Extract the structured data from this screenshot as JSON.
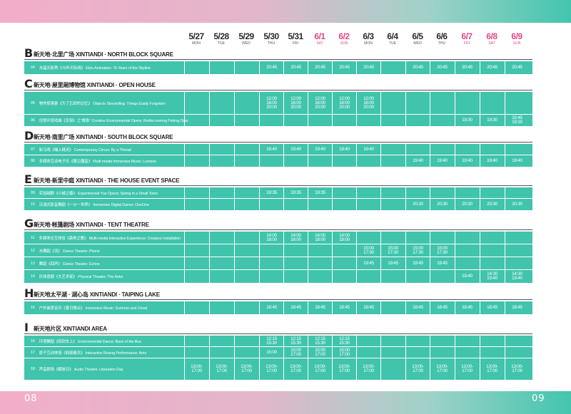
{
  "page": {
    "left_number": "08",
    "right_number": "09"
  },
  "dates": [
    {
      "date": "5/27",
      "day": "MON",
      "weekend": false
    },
    {
      "date": "5/28",
      "day": "TUE",
      "weekend": false
    },
    {
      "date": "5/29",
      "day": "WED",
      "weekend": false
    },
    {
      "date": "5/30",
      "day": "THU",
      "weekend": false
    },
    {
      "date": "5/31",
      "day": "FRI",
      "weekend": false
    },
    {
      "date": "6/1",
      "day": "SAT",
      "weekend": true
    },
    {
      "date": "6/2",
      "day": "SUN",
      "weekend": true
    },
    {
      "date": "6/3",
      "day": "MON",
      "weekend": false
    },
    {
      "date": "6/4",
      "day": "TUE",
      "weekend": false
    },
    {
      "date": "6/5",
      "day": "WED",
      "weekend": false
    },
    {
      "date": "6/6",
      "day": "THU",
      "weekend": false
    },
    {
      "date": "6/7",
      "day": "FRI",
      "weekend": true
    },
    {
      "date": "6/8",
      "day": "SAT",
      "weekend": true
    },
    {
      "date": "6/9",
      "day": "SUN",
      "weekend": true
    }
  ],
  "venues": [
    {
      "letter": "B",
      "name": "新天地·北里广场  XINTIANDI · NORTH BLOCK SQUARE",
      "rows": [
        {
          "num": "04",
          "title": "水晶光影秀《70年天际线》  Ebru Animation: 70 Years of the Skyline",
          "times": [
            "",
            "",
            "",
            "20:45",
            "20:45",
            "20:45",
            "20:45",
            "20:45",
            "",
            "20:45",
            "20:45",
            "20:45",
            "20:45",
            "20:45"
          ]
        }
      ]
    },
    {
      "letter": "C",
      "name": "新天地·屋里厢博物馆  XINTIANDI · OPEN HOUSE",
      "rows": [
        {
          "num": "05",
          "title": "物件叙事剧《为了忘却的记忆》  Objects Storytelling: Things Easily Forgotten",
          "times": [
            "",
            "",
            "",
            "12:00\n16:00\n20:00",
            "12:00\n16:00\n20:00",
            "12:00\n16:00\n20:00",
            "12:00\n16:00\n20:00",
            "12:00\n16:00\n20:00",
            "",
            "",
            "",
            "",
            "",
            ""
          ]
        },
        {
          "num": "06",
          "title": "创意环境戏曲《京探》之“微系”  Creative Environmental Opera: Rediscovering Peking Opera",
          "times": [
            "",
            "",
            "",
            "",
            "",
            "",
            "",
            "",
            "",
            "",
            "",
            "19:30",
            "19:30",
            "15:45\n19:30"
          ]
        }
      ]
    },
    {
      "letter": "D",
      "name": "新天地·南里广场  XINTIANDI · SOUTH BLOCK SQUARE",
      "rows": [
        {
          "num": "07",
          "title": "新马戏《绳上精灵》  Contemporary Circus: By a Thread",
          "times": [
            "",
            "",
            "",
            "19:40",
            "19:40",
            "19:40",
            "19:40",
            "19:40",
            "",
            "",
            "",
            "",
            "",
            ""
          ]
        },
        {
          "num": "08",
          "title": "多媒体互动电子乐《微尘魔音》  Multi-media Immersive Music: Lumens",
          "times": [
            "",
            "",
            "",
            "",
            "",
            "",
            "",
            "",
            "",
            "19:40",
            "19:40",
            "19:40",
            "19:40",
            "19:40"
          ]
        }
      ]
    },
    {
      "letter": "E",
      "name": "新天地·新里中庭  XINTIANDI · THE HOUSE EVENT SPACE",
      "rows": [
        {
          "num": "09",
          "title": "实验越剧《小城之春》  Experimental Yue Opera: Spring in a Small Town",
          "times": [
            "",
            "",
            "",
            "19:35",
            "19:35",
            "19:35",
            "",
            "",
            "",
            "",
            "",
            "",
            "",
            ""
          ]
        },
        {
          "num": "10",
          "title": "沉浸式影音舞蹈《一沙一世界》  Immersive Digital Dance: OneOne",
          "times": [
            "",
            "",
            "",
            "",
            "",
            "",
            "",
            "",
            "",
            "20:30",
            "20:30",
            "20:30",
            "20:30",
            "20:30"
          ]
        }
      ]
    },
    {
      "letter": "G",
      "name": "新天地·帐篷剧场  XINTIANDI · TENT THEATRE",
      "rows": [
        {
          "num": "11",
          "title": "多媒体交互体验《森林之歌》  Multi-media Interactive Experience: Creature Installation",
          "times": [
            "",
            "",
            "",
            "14:00\n18:00",
            "14:00\n18:00",
            "14:00\n18:00",
            "14:00\n18:00",
            "",
            "",
            "",
            "",
            "",
            "",
            ""
          ]
        },
        {
          "num": "12",
          "title": "水舞蹈《羽》  Dance Theatre: Plume",
          "times": [
            "",
            "",
            "",
            "",
            "",
            "",
            "",
            "15:00\n17:30",
            "15:00\n17:30",
            "15:00\n17:30",
            "15:00\n17:30",
            "",
            "",
            ""
          ]
        },
        {
          "num": "13",
          "title": "舞蹈《回声》  Dance Theatre: Echos",
          "times": [
            "",
            "",
            "",
            "",
            "",
            "",
            "",
            "19:45",
            "19:45",
            "19:45",
            "19:45",
            "",
            "",
            ""
          ]
        },
        {
          "num": "14",
          "title": "形体喜剧《大艺术家》  Physical Theatre: The Artist",
          "times": [
            "",
            "",
            "",
            "",
            "",
            "",
            "",
            "",
            "",
            "",
            "",
            "19:40",
            "14:30\n19:40",
            "14:30\n19:40"
          ]
        }
      ]
    },
    {
      "letter": "H",
      "name": "新天地太平湖 · 湖心岛  XINTIANDI · TAIPING LAKE",
      "rows": [
        {
          "num": "15",
          "title": "户外装置音乐《夏日微云》  Immersive Music: Summer and Cloud",
          "times": [
            "",
            "",
            "",
            "18:45",
            "18:45",
            "18:45",
            "18:45",
            "18:45",
            "",
            "18:45",
            "18:45",
            "18:45",
            "18:45",
            "18:45"
          ]
        }
      ]
    },
    {
      "letter": "I",
      "name": "新天地片区  XINTIANDI AREA",
      "rows": [
        {
          "num": "16",
          "title": "环境舞蹈《回到车上》  Environmental Dance: Back of the Bus",
          "times": [
            "",
            "",
            "",
            "12:15\n15:30",
            "12:15\n15:30",
            "12:15\n15:30",
            "12:15\n15:30",
            "",
            "",
            "",
            "",
            "",
            "",
            ""
          ]
        },
        {
          "num": "17",
          "title": "原子互动体验《蚂蚁建兵》  Interactive Roving Performance: Ants",
          "times": [
            "",
            "",
            "",
            "15:00",
            "15:00\n17:00",
            "15:00\n17:00",
            "15:00\n17:00",
            "",
            "",
            "",
            "",
            "",
            "",
            ""
          ]
        },
        {
          "num": "18",
          "title": "声音剧场《解放日》  Audio Theatre: Liberation Day",
          "times": [
            "13:00-\n17:00",
            "13:00-\n17:00",
            "13:00-\n17:00",
            "13:00-\n17:00",
            "13:00-\n17:00",
            "13:00-\n17:00",
            "13:00-\n17:00",
            "13:00-\n17:00",
            "",
            "13:00-\n17:00",
            "13:00-\n17:00",
            "13:00-\n17:00",
            "13:00-\n17:00",
            "13:00-\n17:00"
          ]
        }
      ]
    }
  ]
}
